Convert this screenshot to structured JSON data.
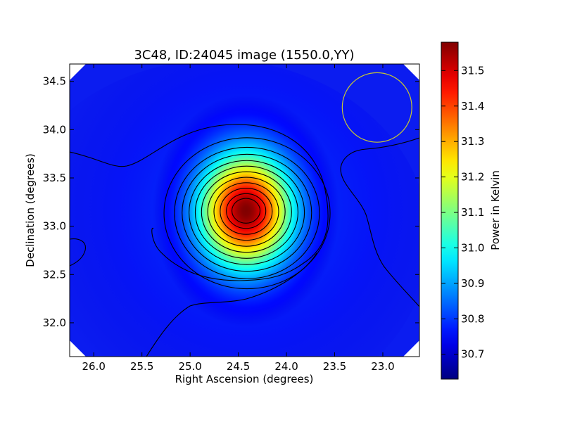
{
  "chart_data": {
    "type": "heatmap",
    "title": "3C48, ID:24045 image (1550.0,YY)",
    "xlabel": "Right Ascension (degrees)",
    "ylabel": "Declination (degrees)",
    "colorbar_label": "Power in Kelvin",
    "colormap": "jet",
    "xlim": [
      26.25,
      22.62
    ],
    "ylim": [
      31.65,
      34.68
    ],
    "x_inverted": true,
    "x_ticks": [
      26.0,
      25.5,
      25.0,
      24.5,
      24.0,
      23.5,
      23.0
    ],
    "x_tick_labels": [
      "26.0",
      "25.5",
      "25.0",
      "24.5",
      "24.0",
      "23.5",
      "23.0"
    ],
    "y_ticks": [
      32.0,
      32.5,
      33.0,
      33.5,
      34.0,
      34.5
    ],
    "y_tick_labels": [
      "32.0",
      "32.5",
      "33.0",
      "33.5",
      "34.0",
      "34.5"
    ],
    "colorbar_range": [
      30.63,
      31.58
    ],
    "colorbar_ticks": [
      30.7,
      30.8,
      30.9,
      31.0,
      31.1,
      31.2,
      31.3,
      31.4,
      31.5
    ],
    "colorbar_tick_labels": [
      "30.7",
      "30.8",
      "30.9",
      "31.0",
      "31.1",
      "31.2",
      "31.3",
      "31.4",
      "31.5"
    ],
    "source": {
      "ra": 24.42,
      "dec": 33.16,
      "peak_value": 31.58,
      "sigma_ra": 0.36,
      "sigma_dec": 0.4
    },
    "background_value": 30.72,
    "contour_line_color": "#000000",
    "beam": {
      "ra": 23.06,
      "dec": 34.23,
      "radius_deg": 0.36,
      "color": "#c8c832"
    },
    "grid": false
  }
}
